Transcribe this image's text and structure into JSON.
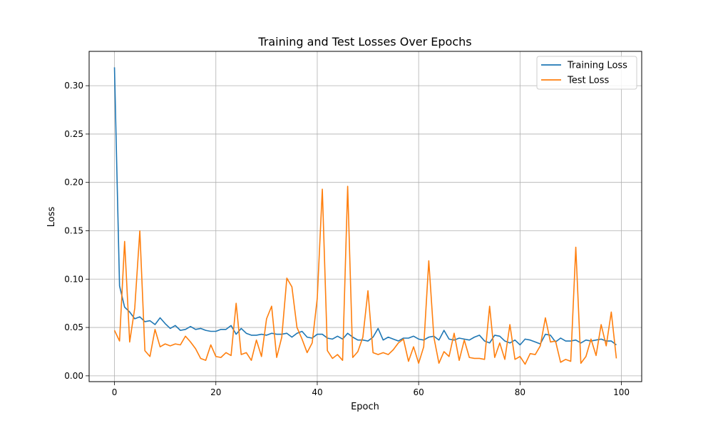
{
  "chart_data": {
    "type": "line",
    "title": "Training and Test Losses Over Epochs",
    "xlabel": "Epoch",
    "ylabel": "Loss",
    "xlim": [
      -5,
      104
    ],
    "ylim": [
      -0.006,
      0.3355
    ],
    "xticks": [
      0,
      20,
      40,
      60,
      80,
      100
    ],
    "yticks": [
      0.0,
      0.05,
      0.1,
      0.15,
      0.2,
      0.25,
      0.3
    ],
    "ytick_labels": [
      "0.00",
      "0.05",
      "0.10",
      "0.15",
      "0.20",
      "0.25",
      "0.30"
    ],
    "grid": true,
    "legend_position": "top-right",
    "series": [
      {
        "name": "Training Loss",
        "color": "#1f77b4",
        "values": [
          0.319,
          0.093,
          0.071,
          0.066,
          0.059,
          0.061,
          0.056,
          0.057,
          0.053,
          0.06,
          0.054,
          0.049,
          0.052,
          0.047,
          0.048,
          0.051,
          0.048,
          0.049,
          0.047,
          0.046,
          0.046,
          0.048,
          0.048,
          0.052,
          0.043,
          0.049,
          0.044,
          0.042,
          0.042,
          0.043,
          0.042,
          0.044,
          0.043,
          0.043,
          0.044,
          0.04,
          0.044,
          0.046,
          0.04,
          0.039,
          0.043,
          0.043,
          0.039,
          0.038,
          0.041,
          0.038,
          0.044,
          0.04,
          0.037,
          0.037,
          0.036,
          0.04,
          0.049,
          0.037,
          0.04,
          0.038,
          0.036,
          0.039,
          0.039,
          0.041,
          0.038,
          0.037,
          0.04,
          0.041,
          0.037,
          0.047,
          0.038,
          0.037,
          0.039,
          0.038,
          0.037,
          0.04,
          0.042,
          0.036,
          0.034,
          0.042,
          0.041,
          0.036,
          0.034,
          0.037,
          0.032,
          0.038,
          0.037,
          0.035,
          0.033,
          0.043,
          0.042,
          0.035,
          0.039,
          0.036,
          0.036,
          0.037,
          0.034,
          0.037,
          0.036,
          0.037,
          0.038,
          0.036,
          0.036,
          0.032
        ]
      },
      {
        "name": "Test Loss",
        "color": "#ff7f0e",
        "values": [
          0.047,
          0.036,
          0.139,
          0.035,
          0.07,
          0.15,
          0.026,
          0.02,
          0.048,
          0.03,
          0.033,
          0.031,
          0.033,
          0.032,
          0.041,
          0.035,
          0.028,
          0.018,
          0.016,
          0.032,
          0.02,
          0.019,
          0.024,
          0.021,
          0.075,
          0.022,
          0.024,
          0.016,
          0.037,
          0.02,
          0.059,
          0.072,
          0.019,
          0.04,
          0.101,
          0.092,
          0.05,
          0.038,
          0.024,
          0.034,
          0.08,
          0.193,
          0.026,
          0.018,
          0.022,
          0.016,
          0.196,
          0.019,
          0.025,
          0.04,
          0.088,
          0.024,
          0.022,
          0.024,
          0.022,
          0.027,
          0.034,
          0.038,
          0.015,
          0.03,
          0.013,
          0.03,
          0.119,
          0.04,
          0.013,
          0.025,
          0.02,
          0.044,
          0.016,
          0.037,
          0.019,
          0.018,
          0.018,
          0.017,
          0.072,
          0.019,
          0.034,
          0.017,
          0.053,
          0.017,
          0.02,
          0.012,
          0.023,
          0.022,
          0.031,
          0.06,
          0.035,
          0.036,
          0.014,
          0.017,
          0.015,
          0.133,
          0.013,
          0.02,
          0.038,
          0.021,
          0.053,
          0.031,
          0.066,
          0.018
        ]
      }
    ]
  }
}
